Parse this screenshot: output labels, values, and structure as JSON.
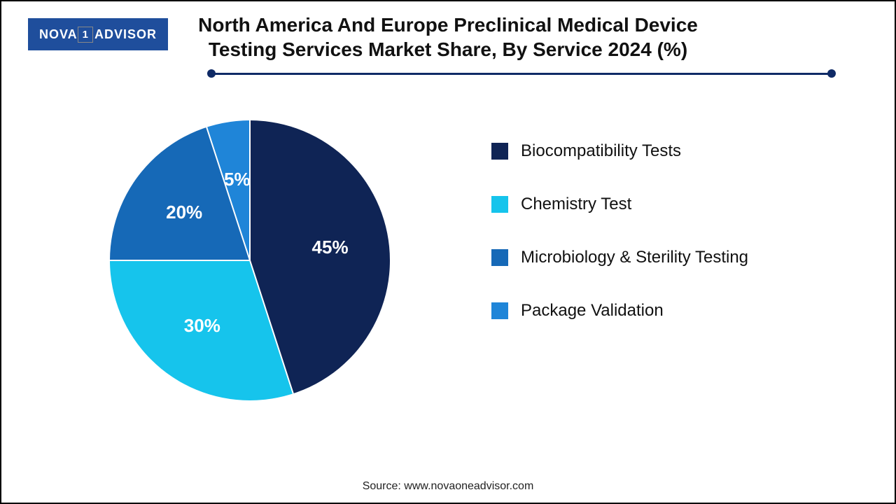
{
  "logo": {
    "bg": "#1f4e9c",
    "text_left": "NOVA",
    "text_box": "1",
    "text_right": "ADVISOR"
  },
  "title": {
    "text": "North America And Europe Preclinical Medical Device Testing Services Market Share, By Service 2024 (%)",
    "fontsize": 28
  },
  "rule": {
    "color": "#0f2a66"
  },
  "chart": {
    "type": "pie",
    "background_color": "#ffffff",
    "start_angle_deg": 0,
    "slices": [
      {
        "label": "Biocompatibility Tests",
        "value": 45,
        "color": "#0f2455",
        "pct_text": "45%"
      },
      {
        "label": "Chemistry Test",
        "value": 30,
        "color": "#16c4ec",
        "pct_text": "30%"
      },
      {
        "label": "Microbiology & Sterility Testing",
        "value": 20,
        "color": "#1669b7",
        "pct_text": "20%"
      },
      {
        "label": "Package Validation",
        "value": 5,
        "color": "#1f85d8",
        "pct_text": "5%"
      }
    ],
    "divider_color": "#ffffff",
    "divider_width": 2,
    "pct_label_fontsize": 26,
    "pct_label_color": "#ffffff"
  },
  "legend": {
    "fontsize": 24,
    "swatch_size": 24,
    "text_color": "#111111"
  },
  "source": {
    "text": "Source: www.novaoneadvisor.com",
    "fontsize": 16
  }
}
